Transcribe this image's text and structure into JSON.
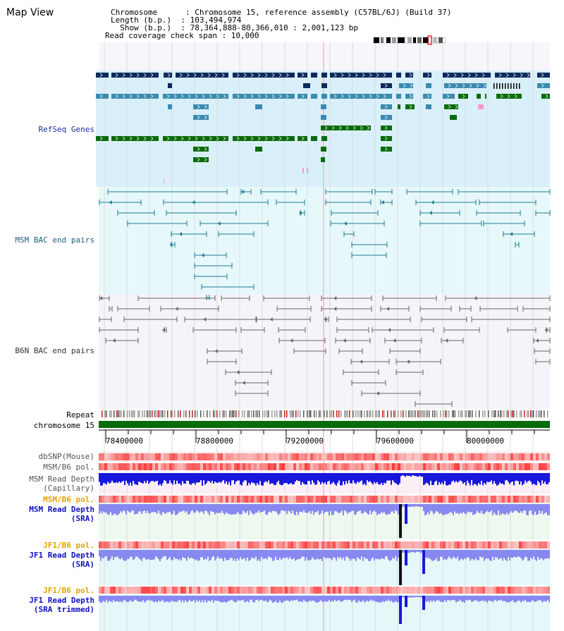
{
  "header": {
    "title": "Map View",
    "info_lines": [
      "Chromosome      : Chromosome 15, reference assembly (C57BL/6J) (Build 37)",
      "Length (b.p.)  : 103,494,974",
      "  Show (b.p.)  : 78,364,888-80,366,010 : 2,001,123 bp",
      "Read coverage check span : 10,000"
    ]
  },
  "tracks": {
    "refseq_genes": "RefSeq Genes",
    "msm_bac": "MSM BAC end pairs",
    "b6n_bac": "B6N BAC end pairs",
    "repeat": "Repeat",
    "chromosome": "chromosome 15",
    "dbsnp": "dbSNP(Mouse)",
    "msm_b6_pol_1": "MSM/B6 pol.",
    "msm_read_depth_cap_1": "MSM Read Depth",
    "msm_read_depth_cap_2": "(Capillary)",
    "msm_b6_pol_2": "MSM/B6 pol.",
    "msm_read_depth_sra_1": "MSM Read Depth",
    "msm_read_depth_sra_2": "(SRA)",
    "jf1_b6_pol_1": "JF1/B6 pol.",
    "jf1_read_depth_sra_1": "JF1 Read Depth",
    "jf1_read_depth_sra_2": "(SRA)",
    "jf1_b6_pol_2": "JF1/B6 pol.",
    "jf1_read_depth_trim_1": "JF1 Read Depth",
    "jf1_read_depth_trim_2": "(SRA trimmed)"
  },
  "axis": {
    "ticks": [
      "78400000",
      "78800000",
      "79200000",
      "79600000",
      "80000000"
    ]
  },
  "colors": {
    "gene_navy": "#0d2a5c",
    "gene_teal": "#3b8bb0",
    "gene_green": "#0a6b0a",
    "bac_teal": "#1f7a94",
    "bac_grey": "#666666",
    "depth_blue": "#1818dd",
    "depth_light_blue": "#8888f0"
  }
}
